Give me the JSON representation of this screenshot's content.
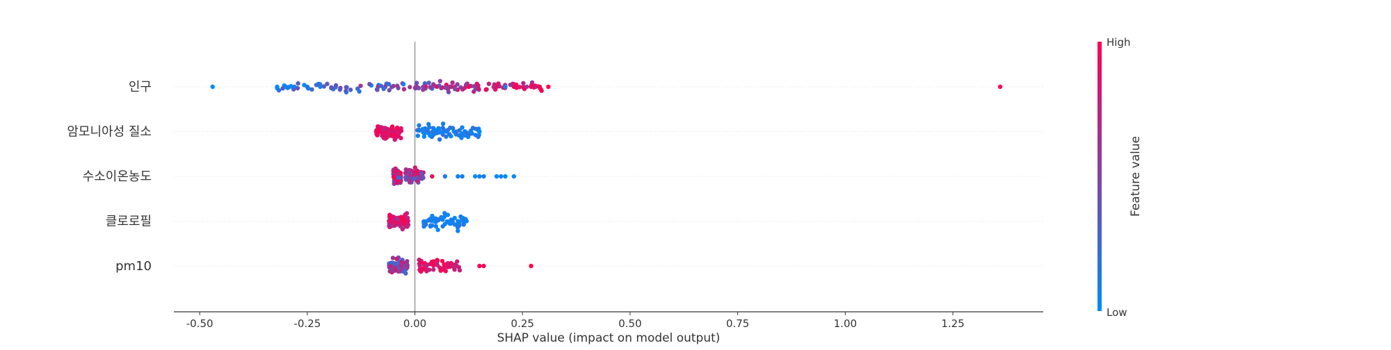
{
  "chart_data": {
    "type": "scatter",
    "subtype": "shap-beeswarm",
    "xlabel": "SHAP value (impact on model output)",
    "xlim": [
      -0.56,
      1.46
    ],
    "xticks": [
      -0.5,
      -0.25,
      0.0,
      0.25,
      0.5,
      0.75,
      1.0,
      1.25
    ],
    "xtick_labels": [
      "-0.50",
      "-0.25",
      "0.00",
      "0.25",
      "0.50",
      "0.75",
      "1.00",
      "1.25"
    ],
    "features": [
      {
        "name": "인구",
        "min": -0.47,
        "max": 1.36,
        "core_min": -0.32,
        "core_max": 0.31,
        "count": 150,
        "points": [
          {
            "x": -0.47,
            "v": 0.0
          },
          {
            "x": -0.32,
            "v": 0.05
          },
          {
            "x": -0.3,
            "v": 0.1
          },
          {
            "x": -0.28,
            "v": 0.1
          },
          {
            "x": -0.25,
            "v": 0.15
          },
          {
            "x": -0.22,
            "v": 0.1
          },
          {
            "x": 0.27,
            "v": 0.95
          },
          {
            "x": 0.29,
            "v": 0.9
          },
          {
            "x": 0.31,
            "v": 1.0
          },
          {
            "x": 0.21,
            "v": 0.15
          },
          {
            "x": 0.23,
            "v": 0.9
          },
          {
            "x": 1.36,
            "v": 1.0
          }
        ]
      },
      {
        "name": "암모니아성 질소",
        "min": -0.09,
        "max": 0.15,
        "core_min": -0.09,
        "core_max": 0.15,
        "count": 150,
        "points": [
          {
            "x": 0.15,
            "v": 0.0
          },
          {
            "x": 0.13,
            "v": 0.05
          },
          {
            "x": -0.09,
            "v": 0.9
          }
        ]
      },
      {
        "name": "수소이온농도",
        "min": -0.05,
        "max": 0.23,
        "core_min": -0.05,
        "core_max": 0.02,
        "count": 150,
        "points": [
          {
            "x": 0.04,
            "v": 0.9
          },
          {
            "x": 0.07,
            "v": 0.1
          },
          {
            "x": 0.1,
            "v": 0.05
          },
          {
            "x": 0.11,
            "v": 0.1
          },
          {
            "x": 0.14,
            "v": 0.0
          },
          {
            "x": 0.15,
            "v": 0.05
          },
          {
            "x": 0.16,
            "v": 0.1
          },
          {
            "x": 0.19,
            "v": 0.0
          },
          {
            "x": 0.2,
            "v": 0.05
          },
          {
            "x": 0.21,
            "v": 0.0
          },
          {
            "x": 0.23,
            "v": 0.0
          }
        ]
      },
      {
        "name": "클로로필",
        "min": -0.06,
        "max": 0.12,
        "core_min": -0.06,
        "core_max": 0.12,
        "count": 150,
        "points": [
          {
            "x": 0.12,
            "v": 0.0
          },
          {
            "x": 0.1,
            "v": 0.05
          },
          {
            "x": -0.06,
            "v": 0.85
          }
        ]
      },
      {
        "name": "pm10",
        "min": -0.06,
        "max": 0.27,
        "core_min": -0.06,
        "core_max": 0.11,
        "count": 150,
        "points": [
          {
            "x": 0.15,
            "v": 1.0
          },
          {
            "x": 0.16,
            "v": 0.95
          },
          {
            "x": 0.27,
            "v": 1.0
          }
        ]
      }
    ],
    "colorbar": {
      "title": "Feature value",
      "high_label": "High",
      "low_label": "Low",
      "low_color": "#008bfb",
      "high_color": "#ff0052"
    }
  }
}
